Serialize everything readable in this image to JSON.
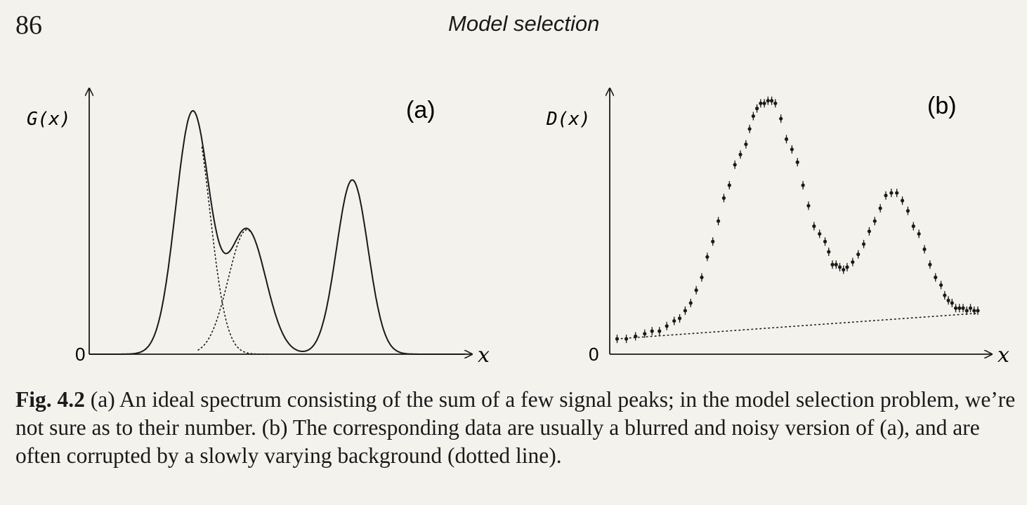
{
  "header": {
    "page_number": "86",
    "running_title": "Model selection"
  },
  "figure": {
    "panel_a": {
      "label": "(a)",
      "ylabel": "G(x)",
      "xlabel": "x",
      "origin_label": "0"
    },
    "panel_b": {
      "label": "(b)",
      "ylabel": "D(x)",
      "xlabel": "x",
      "origin_label": "0"
    }
  },
  "caption": {
    "fig_label": "Fig. 4.2",
    "text": "(a) An ideal spectrum consisting of the sum of a few signal peaks; in the model selection problem, we’re not sure as to their number. (b) The corresponding data are usually a blurred and noisy version of (a), and are often corrupted by a slowly varying background (dotted line)."
  },
  "chart_data": [
    {
      "type": "line",
      "panel": "(a)",
      "xlabel": "x",
      "ylabel": "G(x)",
      "x_range": [
        0,
        10
      ],
      "y_range": [
        0,
        1
      ],
      "peaks": [
        {
          "center": 2.75,
          "amplitude": 0.97,
          "width": 0.45
        },
        {
          "center": 4.2,
          "amplitude": 0.5,
          "width": 0.5
        },
        {
          "center": 7.0,
          "amplitude": 0.7,
          "width": 0.42
        }
      ],
      "series": [
        {
          "style": "solid",
          "values": "sum of peaks"
        },
        {
          "style": "dotted",
          "values": "individual peaks 1 and 2"
        }
      ]
    },
    {
      "type": "scatter",
      "panel": "(b)",
      "xlabel": "x",
      "ylabel": "D(x)",
      "x_range": [
        0,
        10
      ],
      "y_range": [
        0,
        1
      ],
      "points": [
        [
          0.2,
          0.06
        ],
        [
          0.45,
          0.06
        ],
        [
          0.7,
          0.07
        ],
        [
          0.95,
          0.08
        ],
        [
          1.15,
          0.09
        ],
        [
          1.35,
          0.09
        ],
        [
          1.55,
          0.11
        ],
        [
          1.75,
          0.13
        ],
        [
          1.9,
          0.14
        ],
        [
          2.05,
          0.17
        ],
        [
          2.2,
          0.2
        ],
        [
          2.35,
          0.25
        ],
        [
          2.5,
          0.3
        ],
        [
          2.65,
          0.38
        ],
        [
          2.8,
          0.44
        ],
        [
          2.95,
          0.52
        ],
        [
          3.1,
          0.61
        ],
        [
          3.25,
          0.66
        ],
        [
          3.4,
          0.74
        ],
        [
          3.55,
          0.78
        ],
        [
          3.7,
          0.82
        ],
        [
          3.8,
          0.88
        ],
        [
          3.9,
          0.93
        ],
        [
          4.0,
          0.96
        ],
        [
          4.1,
          0.98
        ],
        [
          4.2,
          0.98
        ],
        [
          4.3,
          0.99
        ],
        [
          4.4,
          0.99
        ],
        [
          4.5,
          0.98
        ],
        [
          4.65,
          0.92
        ],
        [
          4.8,
          0.84
        ],
        [
          4.95,
          0.8
        ],
        [
          5.1,
          0.75
        ],
        [
          5.25,
          0.66
        ],
        [
          5.4,
          0.58
        ],
        [
          5.55,
          0.5
        ],
        [
          5.7,
          0.47
        ],
        [
          5.85,
          0.44
        ],
        [
          5.95,
          0.4
        ],
        [
          6.05,
          0.35
        ],
        [
          6.15,
          0.35
        ],
        [
          6.25,
          0.34
        ],
        [
          6.35,
          0.33
        ],
        [
          6.45,
          0.34
        ],
        [
          6.6,
          0.36
        ],
        [
          6.75,
          0.39
        ],
        [
          6.9,
          0.43
        ],
        [
          7.05,
          0.48
        ],
        [
          7.2,
          0.52
        ],
        [
          7.35,
          0.57
        ],
        [
          7.5,
          0.62
        ],
        [
          7.65,
          0.63
        ],
        [
          7.8,
          0.63
        ],
        [
          7.95,
          0.6
        ],
        [
          8.1,
          0.56
        ],
        [
          8.25,
          0.5
        ],
        [
          8.4,
          0.47
        ],
        [
          8.55,
          0.41
        ],
        [
          8.7,
          0.35
        ],
        [
          8.85,
          0.3
        ],
        [
          9.0,
          0.27
        ],
        [
          9.1,
          0.23
        ],
        [
          9.2,
          0.21
        ],
        [
          9.3,
          0.2
        ],
        [
          9.4,
          0.18
        ],
        [
          9.5,
          0.18
        ],
        [
          9.6,
          0.18
        ],
        [
          9.7,
          0.17
        ],
        [
          9.8,
          0.18
        ],
        [
          9.9,
          0.17
        ],
        [
          10.0,
          0.17
        ]
      ],
      "background": {
        "style": "dotted",
        "from": [
          0.2,
          0.06
        ],
        "to": [
          10.0,
          0.16
        ]
      }
    }
  ]
}
